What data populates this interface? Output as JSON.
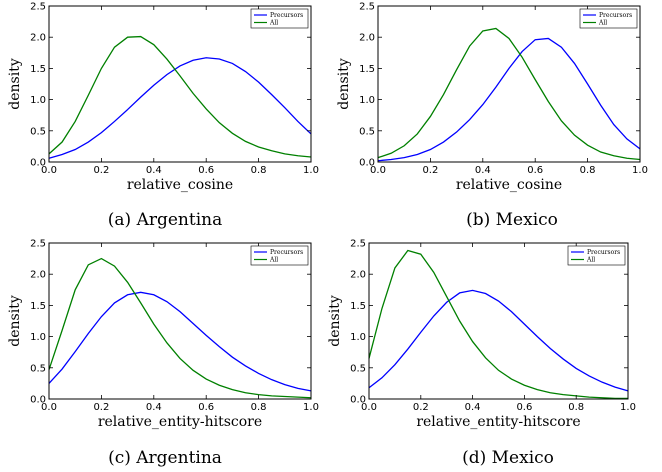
{
  "chart_data": [
    {
      "type": "line",
      "caption": "(a) Argentina",
      "xlabel": "relative_cosine",
      "ylabel": "density",
      "xlim": [
        0.0,
        1.0
      ],
      "ylim": [
        0.0,
        2.5
      ],
      "xticks": [
        "0.0",
        "0.2",
        "0.4",
        "0.6",
        "0.8",
        "1.0"
      ],
      "yticks": [
        "0.0",
        "0.5",
        "1.0",
        "1.5",
        "2.0",
        "2.5"
      ],
      "legend_position": "top-right",
      "series": [
        {
          "name": "Precursors",
          "color": "#0000ff",
          "x": [
            0.0,
            0.05,
            0.1,
            0.15,
            0.2,
            0.25,
            0.3,
            0.35,
            0.4,
            0.45,
            0.5,
            0.55,
            0.6,
            0.65,
            0.7,
            0.75,
            0.8,
            0.85,
            0.9,
            0.95,
            1.0
          ],
          "y": [
            0.06,
            0.12,
            0.2,
            0.32,
            0.47,
            0.65,
            0.84,
            1.04,
            1.23,
            1.4,
            1.54,
            1.63,
            1.67,
            1.65,
            1.58,
            1.45,
            1.28,
            1.08,
            0.87,
            0.65,
            0.45
          ]
        },
        {
          "name": "All",
          "color": "#008000",
          "x": [
            0.0,
            0.05,
            0.1,
            0.15,
            0.2,
            0.25,
            0.3,
            0.35,
            0.4,
            0.45,
            0.5,
            0.55,
            0.6,
            0.65,
            0.7,
            0.75,
            0.8,
            0.85,
            0.9,
            0.95,
            1.0
          ],
          "y": [
            0.13,
            0.32,
            0.65,
            1.07,
            1.5,
            1.84,
            2.0,
            2.01,
            1.88,
            1.65,
            1.38,
            1.1,
            0.85,
            0.63,
            0.46,
            0.33,
            0.24,
            0.18,
            0.13,
            0.1,
            0.08
          ]
        }
      ]
    },
    {
      "type": "line",
      "caption": "(b) Mexico",
      "xlabel": "relative_cosine",
      "ylabel": "density",
      "xlim": [
        0.0,
        1.0
      ],
      "ylim": [
        0.0,
        2.5
      ],
      "xticks": [
        "0.0",
        "0.2",
        "0.4",
        "0.6",
        "0.8",
        "1.0"
      ],
      "yticks": [
        "0.0",
        "0.5",
        "1.0",
        "1.5",
        "2.0",
        "2.5"
      ],
      "legend_position": "top-right",
      "series": [
        {
          "name": "Precursors",
          "color": "#0000ff",
          "x": [
            0.0,
            0.05,
            0.1,
            0.15,
            0.2,
            0.25,
            0.3,
            0.35,
            0.4,
            0.45,
            0.5,
            0.55,
            0.6,
            0.65,
            0.7,
            0.75,
            0.8,
            0.85,
            0.9,
            0.95,
            1.0
          ],
          "y": [
            0.02,
            0.04,
            0.07,
            0.12,
            0.2,
            0.32,
            0.48,
            0.68,
            0.92,
            1.2,
            1.5,
            1.77,
            1.96,
            1.98,
            1.84,
            1.58,
            1.25,
            0.91,
            0.6,
            0.37,
            0.21
          ]
        },
        {
          "name": "All",
          "color": "#008000",
          "x": [
            0.0,
            0.05,
            0.1,
            0.15,
            0.2,
            0.25,
            0.3,
            0.35,
            0.4,
            0.45,
            0.5,
            0.55,
            0.6,
            0.65,
            0.7,
            0.75,
            0.8,
            0.85,
            0.9,
            0.95,
            1.0
          ],
          "y": [
            0.07,
            0.14,
            0.26,
            0.45,
            0.73,
            1.08,
            1.48,
            1.86,
            2.1,
            2.14,
            1.98,
            1.68,
            1.32,
            0.97,
            0.66,
            0.43,
            0.27,
            0.16,
            0.1,
            0.06,
            0.04
          ]
        }
      ]
    },
    {
      "type": "line",
      "caption": "(c) Argentina",
      "xlabel": "relative_entity-hitscore",
      "ylabel": "density",
      "xlim": [
        0.0,
        1.0
      ],
      "ylim": [
        0.0,
        2.5
      ],
      "xticks": [
        "0.0",
        "0.2",
        "0.4",
        "0.6",
        "0.8",
        "1.0"
      ],
      "yticks": [
        "0.0",
        "0.5",
        "1.0",
        "1.5",
        "2.0",
        "2.5"
      ],
      "legend_position": "top-right",
      "series": [
        {
          "name": "Precursors",
          "color": "#0000ff",
          "x": [
            0.0,
            0.05,
            0.1,
            0.15,
            0.2,
            0.25,
            0.3,
            0.35,
            0.4,
            0.45,
            0.5,
            0.55,
            0.6,
            0.65,
            0.7,
            0.75,
            0.8,
            0.85,
            0.9,
            0.95,
            1.0
          ],
          "y": [
            0.25,
            0.48,
            0.76,
            1.05,
            1.32,
            1.54,
            1.67,
            1.71,
            1.67,
            1.56,
            1.4,
            1.21,
            1.02,
            0.84,
            0.67,
            0.53,
            0.41,
            0.31,
            0.23,
            0.17,
            0.13
          ]
        },
        {
          "name": "All",
          "color": "#008000",
          "x": [
            0.0,
            0.05,
            0.1,
            0.15,
            0.2,
            0.25,
            0.3,
            0.35,
            0.4,
            0.45,
            0.5,
            0.55,
            0.6,
            0.65,
            0.7,
            0.75,
            0.8,
            0.85,
            0.9,
            0.95,
            1.0
          ],
          "y": [
            0.47,
            1.1,
            1.75,
            2.15,
            2.25,
            2.13,
            1.87,
            1.54,
            1.2,
            0.9,
            0.65,
            0.46,
            0.32,
            0.22,
            0.15,
            0.1,
            0.07,
            0.05,
            0.04,
            0.03,
            0.02
          ]
        }
      ]
    },
    {
      "type": "line",
      "caption": "(d) Mexico",
      "xlabel": "relative_entity-hitscore",
      "ylabel": "density",
      "xlim": [
        0.0,
        1.0
      ],
      "ylim": [
        0.0,
        2.5
      ],
      "xticks": [
        "0.0",
        "0.2",
        "0.4",
        "0.6",
        "0.8",
        "1.0"
      ],
      "yticks": [
        "0.0",
        "0.5",
        "1.0",
        "1.5",
        "2.0",
        "2.5"
      ],
      "legend_position": "top-right",
      "series": [
        {
          "name": "Precursors",
          "color": "#0000ff",
          "x": [
            0.0,
            0.05,
            0.1,
            0.15,
            0.2,
            0.25,
            0.3,
            0.35,
            0.4,
            0.45,
            0.5,
            0.55,
            0.6,
            0.65,
            0.7,
            0.75,
            0.8,
            0.85,
            0.9,
            0.95,
            1.0
          ],
          "y": [
            0.18,
            0.34,
            0.55,
            0.8,
            1.07,
            1.33,
            1.55,
            1.7,
            1.74,
            1.69,
            1.57,
            1.4,
            1.2,
            1.0,
            0.81,
            0.64,
            0.49,
            0.37,
            0.27,
            0.19,
            0.13
          ]
        },
        {
          "name": "All",
          "color": "#008000",
          "x": [
            0.0,
            0.05,
            0.1,
            0.15,
            0.2,
            0.25,
            0.3,
            0.35,
            0.4,
            0.45,
            0.5,
            0.55,
            0.6,
            0.65,
            0.7,
            0.75,
            0.8,
            0.85,
            0.9,
            0.95,
            1.0
          ],
          "y": [
            0.65,
            1.45,
            2.1,
            2.38,
            2.32,
            2.03,
            1.64,
            1.25,
            0.92,
            0.66,
            0.46,
            0.32,
            0.22,
            0.15,
            0.1,
            0.07,
            0.05,
            0.03,
            0.02,
            0.01,
            0.01
          ]
        }
      ]
    }
  ]
}
